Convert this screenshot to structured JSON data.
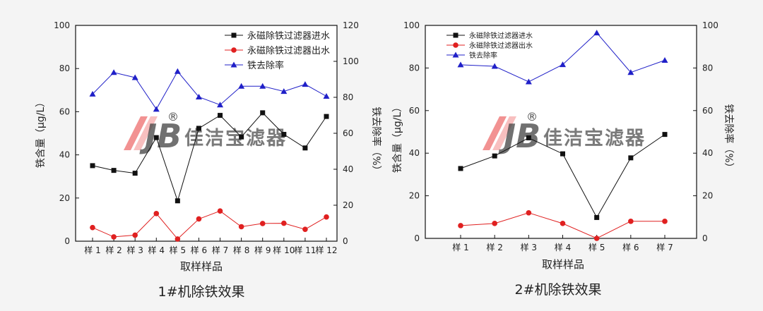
{
  "watermark": {
    "brand": "佳洁宝滤器",
    "logo_letters": "JB",
    "registered_mark": "®",
    "logo_colors": [
      "#f08080",
      "#4a78c0"
    ]
  },
  "chart_data": [
    {
      "type": "line",
      "title": "1#机除铁效果",
      "xlabel": "取样样品",
      "ylabel": "铁含量（μg/L）",
      "y2label": "铁去除率（%）",
      "categories": [
        "样 1",
        "样 2",
        "样 3",
        "样 4",
        "样 5",
        "样 6",
        "样 7",
        "样 8",
        "样 9",
        "样 10",
        "样 11",
        "样 12"
      ],
      "ylim": [
        0,
        100
      ],
      "yticks": [
        0,
        20,
        40,
        60,
        80,
        100
      ],
      "y2lim": [
        0,
        120
      ],
      "y2ticks": [
        0,
        20,
        40,
        60,
        80,
        100,
        120
      ],
      "legend_position": "top-right",
      "series": [
        {
          "name": "永磁除铁过滤器进水",
          "axis": "left",
          "marker": "square",
          "color": "#111111",
          "values": [
            35,
            32.8,
            31.5,
            48,
            18.7,
            52.3,
            58.3,
            48.3,
            59.5,
            49.5,
            43.2,
            57.8
          ]
        },
        {
          "name": "永磁除铁过滤器出水",
          "axis": "left",
          "marker": "circle",
          "color": "#e02020",
          "values": [
            6.3,
            2,
            2.8,
            12.8,
            1,
            10.3,
            14,
            6.7,
            8.2,
            8.3,
            5.5,
            11.2
          ]
        },
        {
          "name": "铁去除率",
          "axis": "right",
          "marker": "triangle",
          "color": "#2020c8",
          "values": [
            81.8,
            93.8,
            91,
            73.4,
            94.4,
            80.2,
            75.8,
            86.2,
            86.2,
            83.3,
            87.2,
            80.6
          ]
        }
      ]
    },
    {
      "type": "line",
      "title": "2#机除铁效果",
      "xlabel": "取样样品",
      "ylabel": "铁含量（μg/L）",
      "y2label": "铁去除率（%）",
      "categories": [
        "样 1",
        "样 2",
        "样 3",
        "样 4",
        "样 5",
        "样 6",
        "样 7"
      ],
      "ylim": [
        0,
        100
      ],
      "yticks": [
        0,
        20,
        40,
        60,
        80,
        100
      ],
      "y2lim": [
        0,
        100
      ],
      "y2ticks": [
        0,
        20,
        40,
        60,
        80,
        100
      ],
      "legend_position": "top-left",
      "series": [
        {
          "name": "永磁除铁过滤器进水",
          "axis": "left",
          "marker": "square",
          "color": "#111111",
          "values": [
            32.8,
            38.7,
            47.2,
            39.7,
            9.8,
            37.8,
            48.8
          ]
        },
        {
          "name": "永磁除铁过滤器出水",
          "axis": "left",
          "marker": "circle",
          "color": "#e02020",
          "values": [
            6,
            7,
            12,
            7,
            0,
            8,
            8
          ]
        },
        {
          "name": "铁去除率",
          "axis": "right",
          "marker": "triangle",
          "color": "#2020c8",
          "values": [
            81.5,
            80.8,
            73.5,
            81.6,
            96.5,
            77.9,
            83.6
          ]
        }
      ]
    }
  ]
}
